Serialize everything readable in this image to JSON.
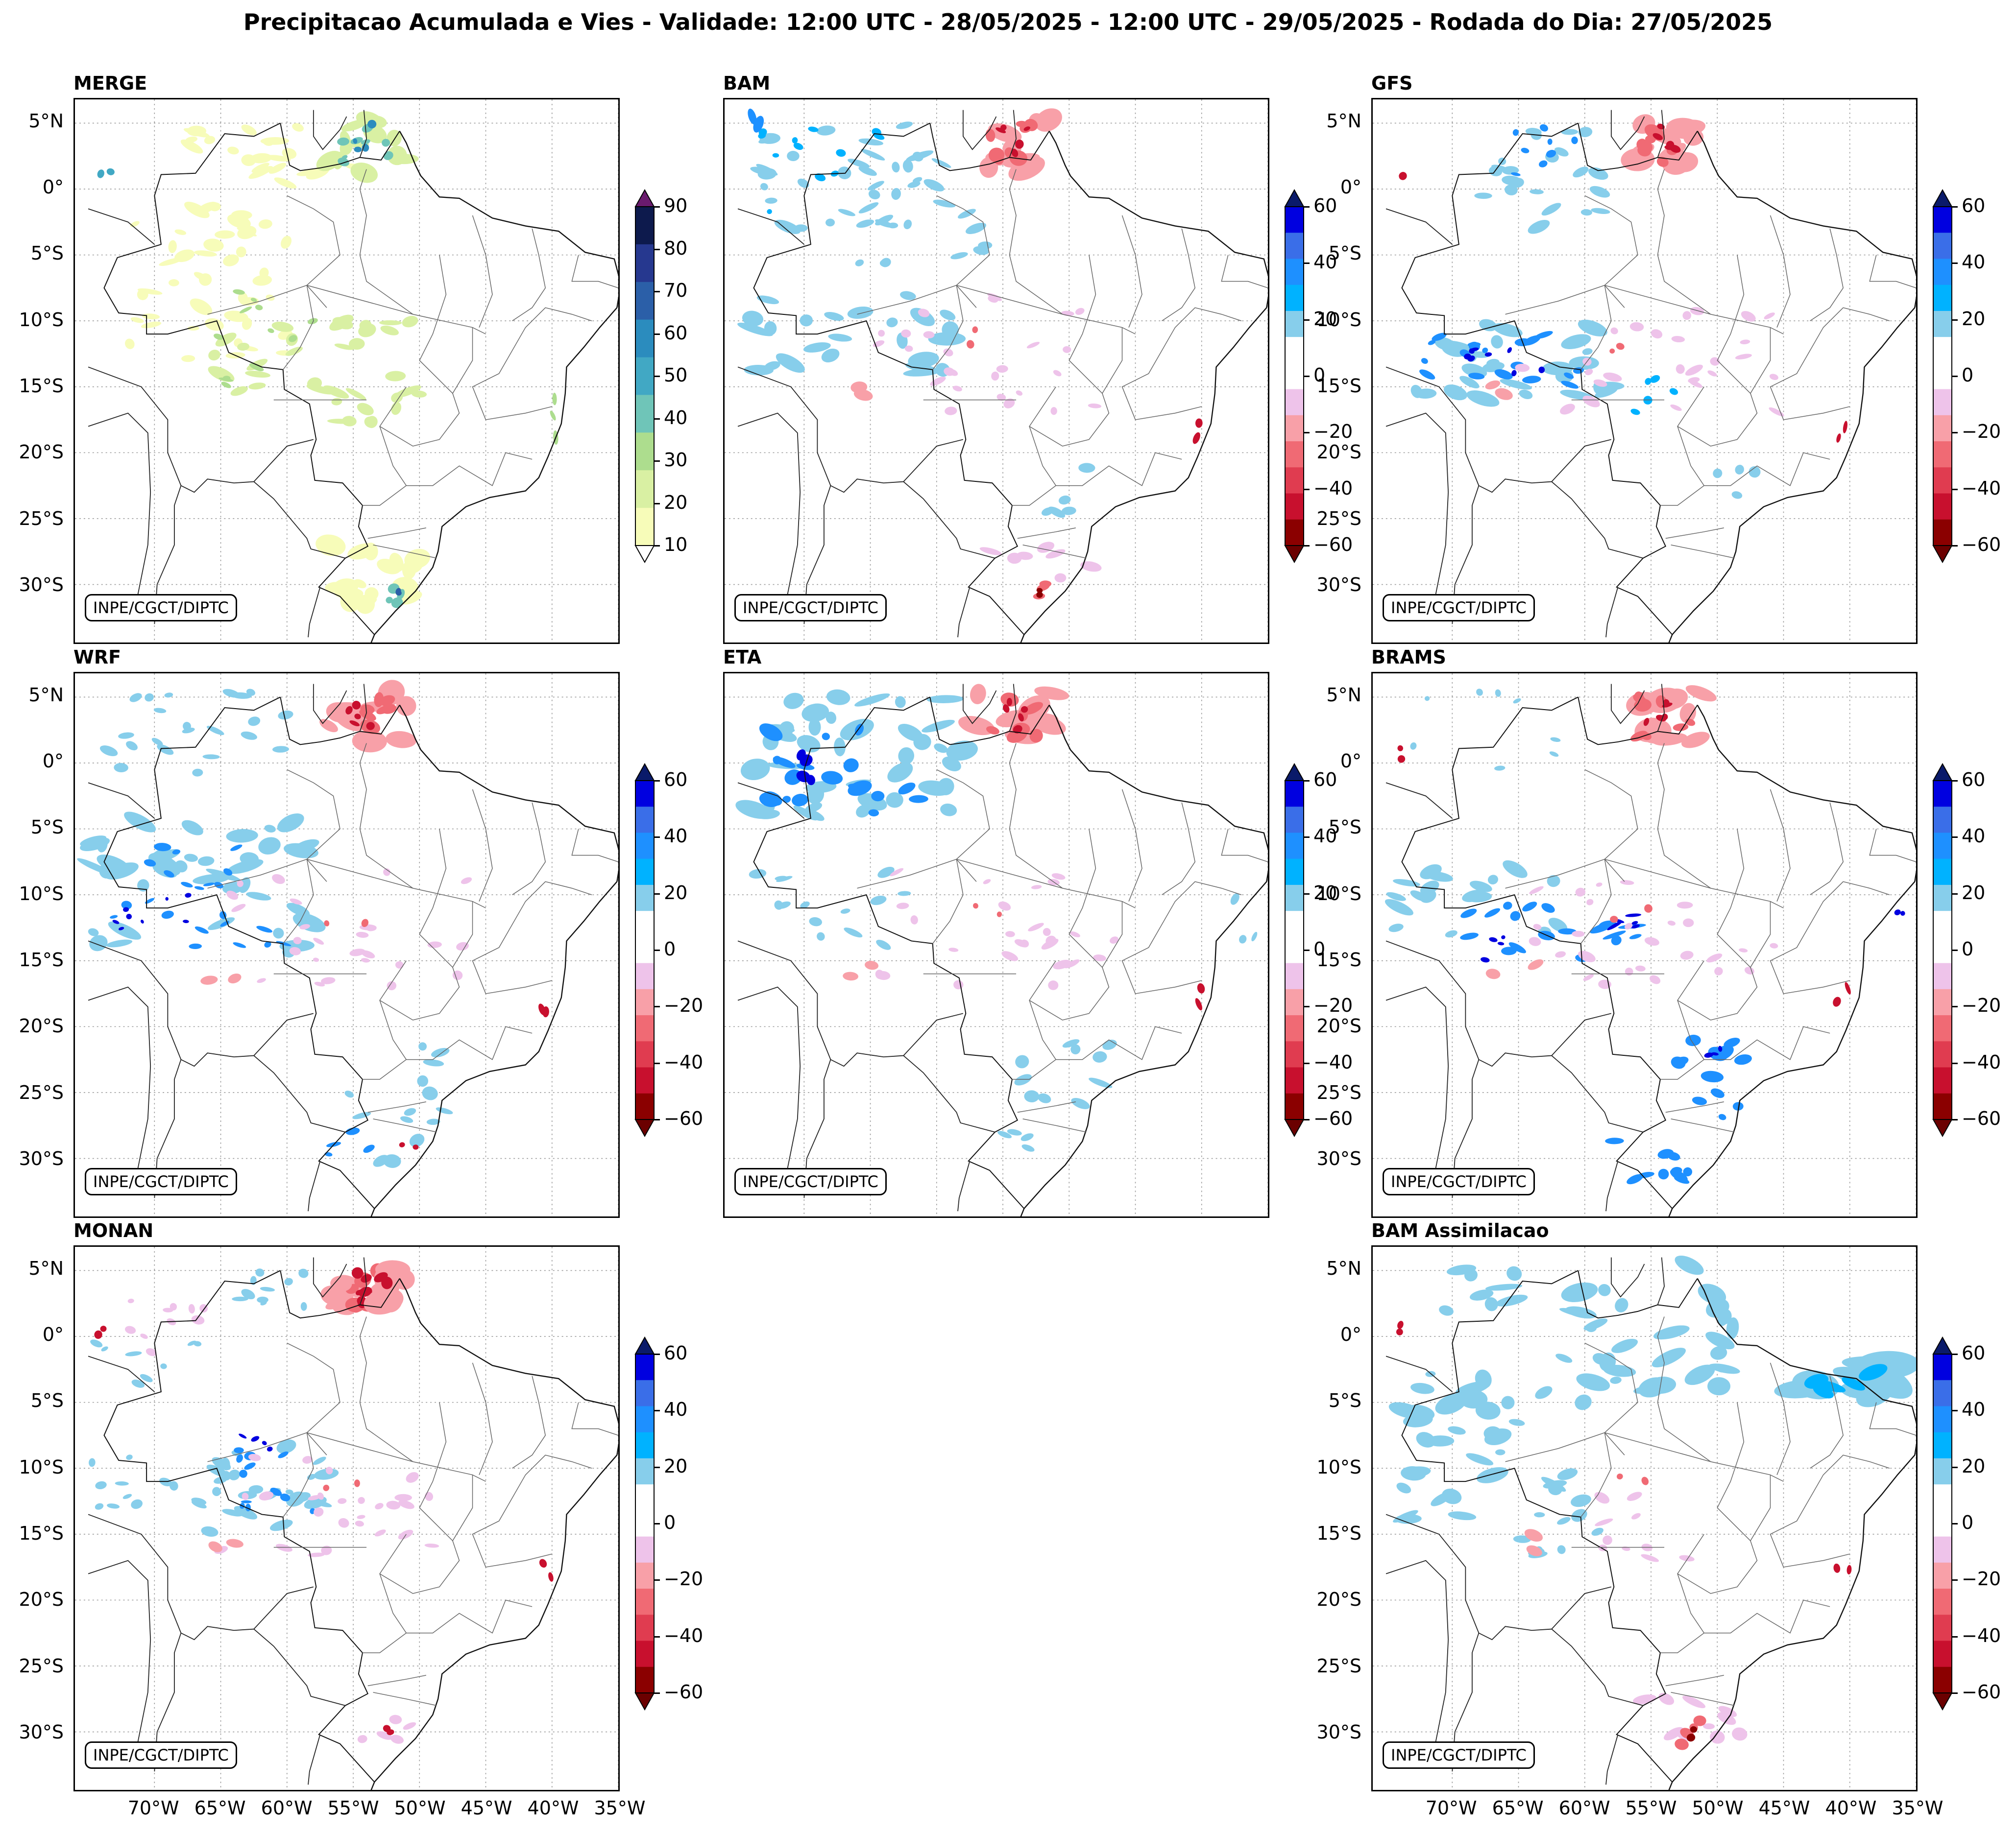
{
  "title": "Precipitacao Acumulada e Vies - Validade: 12:00 UTC - 28/05/2025 - 12:00 UTC - 29/05/2025 - Rodada do Dia: 27/05/2025",
  "credit": "INPE/CGCT/DIPTC",
  "panels": {
    "merge": "MERGE",
    "bam": "BAM",
    "gfs": "GFS",
    "wrf": "WRF",
    "eta": "ETA",
    "brams": "BRAMS",
    "monan": "MONAN",
    "bam_assim": "BAM Assimilacao"
  },
  "lat_labels": [
    "5°N",
    "0°",
    "5°S",
    "10°S",
    "15°S",
    "20°S",
    "25°S",
    "30°S"
  ],
  "lon_labels": [
    "70°W",
    "65°W",
    "60°W",
    "55°W",
    "50°W",
    "45°W",
    "40°W",
    "35°W"
  ],
  "precip_scale": {
    "labels": [
      "90",
      "80",
      "70",
      "60",
      "50",
      "40",
      "30",
      "20",
      "10"
    ],
    "colors": [
      "#0d1a4d",
      "#26388f",
      "#2b5fa8",
      "#2b8cbe",
      "#41a8c4",
      "#6fc5b8",
      "#addd8e",
      "#d9f0a3",
      "#f7fcb9"
    ],
    "over_color": "#6a1b6e"
  },
  "bias_scale": {
    "labels": [
      "60",
      "40",
      "20",
      "0",
      "−20",
      "−40",
      "−60"
    ],
    "colors": [
      "#0000e0",
      "#3a6ee8",
      "#1e90ff",
      "#00b2ff",
      "#87ceeb",
      "#ffffff",
      "#ffffff",
      "#eec3ea",
      "#f8a0a8",
      "#f06a74",
      "#e03c50",
      "#c8102e",
      "#8b0000"
    ],
    "over_color": "#0a1a6a",
    "under_color": "#6b0000"
  }
}
